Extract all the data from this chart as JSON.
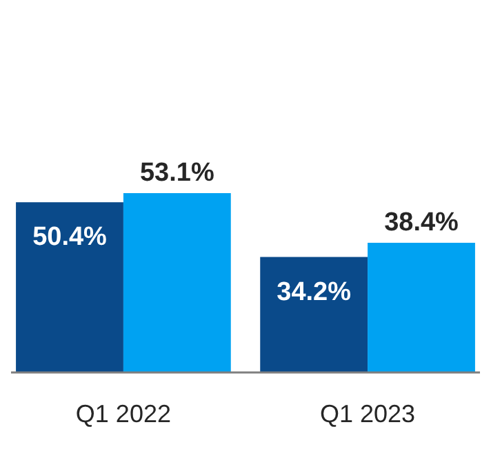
{
  "chart_data": {
    "type": "bar",
    "categories": [
      "Q1 2022",
      "Q1 2023"
    ],
    "series": [
      {
        "color": "#0a4a8a",
        "values": [
          50.4,
          34.2
        ],
        "value_labels": [
          "50.4%",
          "34.2%"
        ]
      },
      {
        "color": "#00a2f2",
        "values": [
          53.1,
          38.4
        ],
        "value_labels": [
          "53.1%",
          "38.4%"
        ]
      }
    ]
  }
}
